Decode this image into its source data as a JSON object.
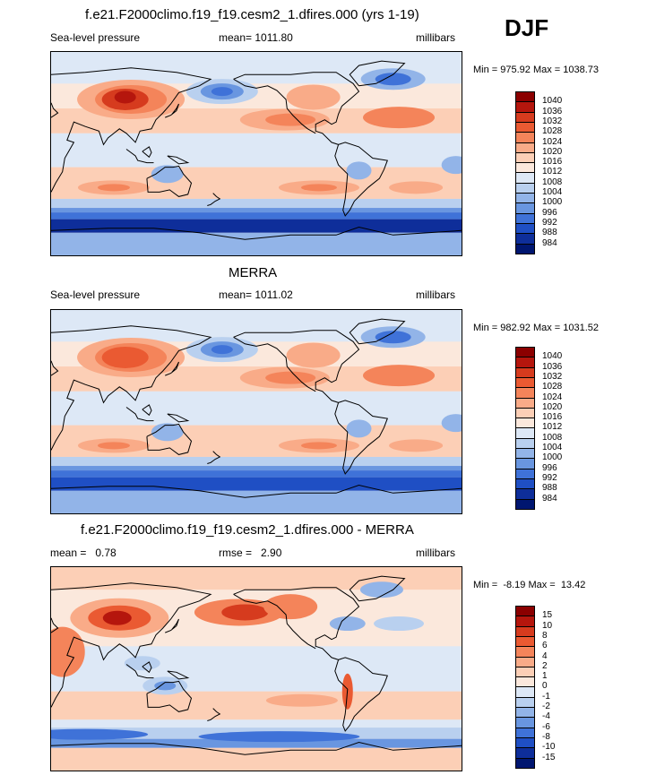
{
  "season": "DJF",
  "panels": [
    {
      "title": "f.e21.F2000climo.f19_f19.cesm2_1.dfires.000 (yrs 1-19)",
      "left_label": "Sea-level pressure",
      "center_label": "mean= 1011.80",
      "right_label": "millibars",
      "minmax": "Min = 975.92 Max = 1038.73"
    },
    {
      "title": "MERRA",
      "left_label": "Sea-level pressure",
      "center_label": "mean= 1011.02",
      "right_label": "millibars",
      "minmax": "Min = 982.92 Max = 1031.52"
    },
    {
      "title": "f.e21.F2000climo.f19_f19.cesm2_1.dfires.000 - MERRA",
      "left_label": "mean =   0.78",
      "center_label": "rmse =   2.90",
      "right_label": "millibars",
      "minmax": "Min =  -8.19 Max =  13.42"
    }
  ],
  "chart_data": [
    {
      "type": "heatmap",
      "title": "f.e21.F2000climo.f19_f19.cesm2_1.dfires.000 (yrs 1-19)",
      "variable": "Sea-level pressure",
      "units": "millibars",
      "mean": 1011.8,
      "min": 975.92,
      "max": 1038.73,
      "colorbar_levels": [
        "1040",
        "1036",
        "1032",
        "1028",
        "1024",
        "1020",
        "1016",
        "1012",
        "1008",
        "1004",
        "1000",
        "996",
        "992",
        "988",
        "984"
      ],
      "colorbar_colors": [
        "#8b0000",
        "#b5160d",
        "#d63b1e",
        "#ea5a32",
        "#f4845a",
        "#f9ab88",
        "#fccfb6",
        "#fbe8dc",
        "#dde8f6",
        "#b9d0ef",
        "#92b4e8",
        "#6996e0",
        "#3f72d8",
        "#1f4fc4",
        "#0e2e9a",
        "#001670"
      ]
    },
    {
      "type": "heatmap",
      "title": "MERRA",
      "variable": "Sea-level pressure",
      "units": "millibars",
      "mean": 1011.02,
      "min": 982.92,
      "max": 1031.52,
      "colorbar_levels": [
        "1040",
        "1036",
        "1032",
        "1028",
        "1024",
        "1020",
        "1016",
        "1012",
        "1008",
        "1004",
        "1000",
        "996",
        "992",
        "988",
        "984"
      ],
      "colorbar_colors": [
        "#8b0000",
        "#b5160d",
        "#d63b1e",
        "#ea5a32",
        "#f4845a",
        "#f9ab88",
        "#fccfb6",
        "#fbe8dc",
        "#dde8f6",
        "#b9d0ef",
        "#92b4e8",
        "#6996e0",
        "#3f72d8",
        "#1f4fc4",
        "#0e2e9a",
        "#001670"
      ]
    },
    {
      "type": "heatmap",
      "title": "f.e21.F2000climo.f19_f19.cesm2_1.dfires.000 - MERRA",
      "units": "millibars",
      "mean": 0.78,
      "rmse": 2.9,
      "min": -8.19,
      "max": 13.42,
      "colorbar_levels": [
        "15",
        "10",
        "8",
        "6",
        "4",
        "2",
        "1",
        "0",
        "-1",
        "-2",
        "-4",
        "-6",
        "-8",
        "-10",
        "-15"
      ],
      "colorbar_colors": [
        "#8b0000",
        "#b5160d",
        "#d63b1e",
        "#ea5a32",
        "#f4845a",
        "#f9ab88",
        "#fccfb6",
        "#fbe8dc",
        "#dde8f6",
        "#b9d0ef",
        "#92b4e8",
        "#6996e0",
        "#3f72d8",
        "#1f4fc4",
        "#0e2e9a",
        "#001670"
      ]
    }
  ]
}
